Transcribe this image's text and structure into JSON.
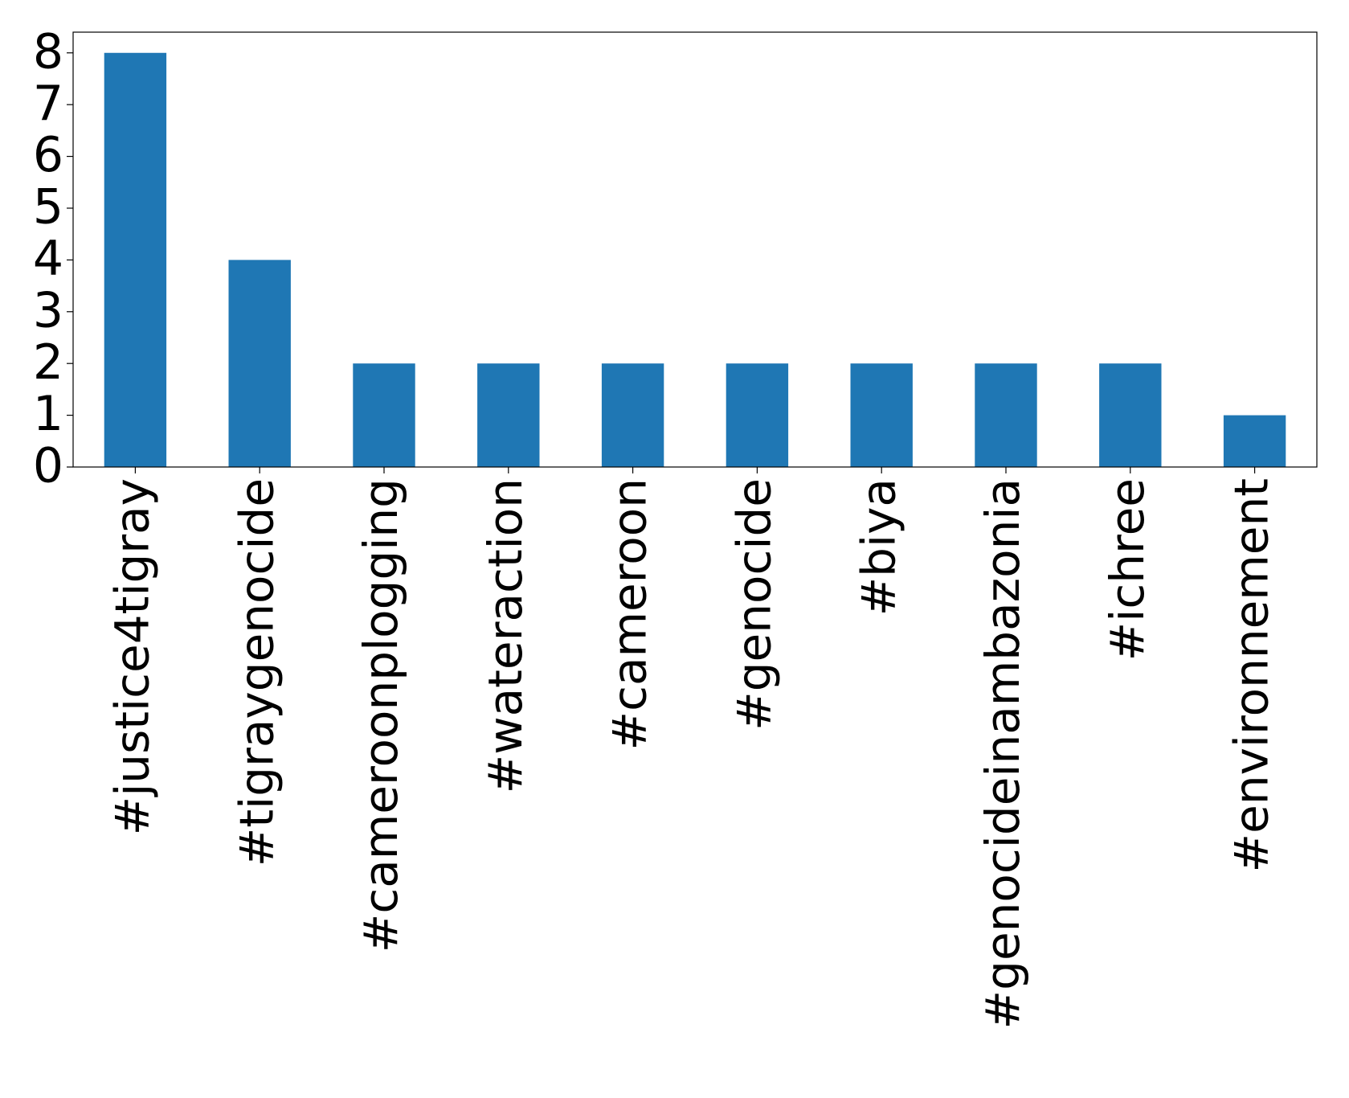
{
  "chart_data": {
    "type": "bar",
    "categories": [
      "#justice4tigray",
      "#tigraygenocide",
      "#cameroonplogging",
      "#wateraction",
      "#cameroon",
      "#genocide",
      "#biya",
      "#genocideinambazonia",
      "#ichree",
      "#environnement"
    ],
    "values": [
      8,
      4,
      2,
      2,
      2,
      2,
      2,
      2,
      2,
      1
    ],
    "color": "#1f77b4",
    "ylim": [
      0,
      8.4
    ],
    "yticks": [
      0,
      1,
      2,
      3,
      4,
      5,
      6,
      7,
      8
    ],
    "grid": false
  }
}
